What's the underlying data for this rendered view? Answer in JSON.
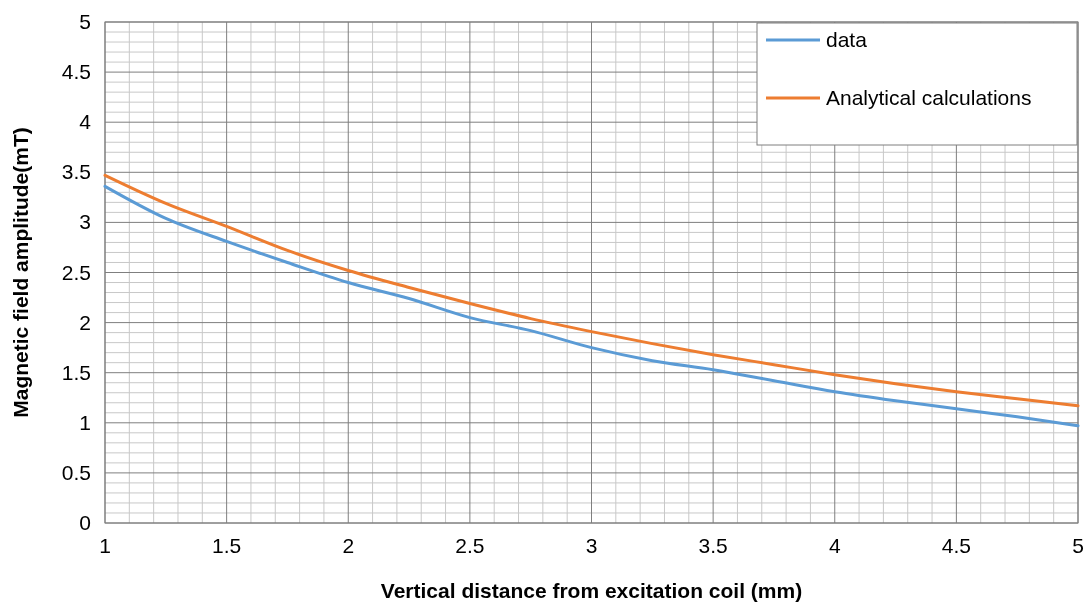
{
  "chart_data": {
    "type": "line",
    "xlabel": "Vertical distance from excitation coil (mm)",
    "ylabel": "Magnetic field amplitude(mT)",
    "x": [
      1,
      1.25,
      1.5,
      1.75,
      2,
      2.25,
      2.5,
      2.75,
      3,
      3.25,
      3.5,
      3.75,
      4,
      4.25,
      4.5,
      4.75,
      5
    ],
    "series": [
      {
        "name": "data",
        "color": "#5b9bd5",
        "values": [
          3.36,
          3.04,
          2.81,
          2.6,
          2.4,
          2.24,
          2.05,
          1.92,
          1.75,
          1.62,
          1.53,
          1.42,
          1.31,
          1.22,
          1.14,
          1.06,
          0.97
        ]
      },
      {
        "name": "Analytical calculations",
        "color": "#ed7d31",
        "values": [
          3.47,
          3.19,
          2.96,
          2.72,
          2.52,
          2.35,
          2.19,
          2.04,
          1.91,
          1.79,
          1.68,
          1.58,
          1.48,
          1.39,
          1.31,
          1.24,
          1.17
        ]
      }
    ],
    "xlim": [
      1,
      5
    ],
    "xticks": [
      1,
      1.5,
      2,
      2.5,
      3,
      3.5,
      4,
      4.5,
      5
    ],
    "ylim": [
      0,
      5
    ],
    "yticks": [
      0,
      0.5,
      1,
      1.5,
      2,
      2.5,
      3,
      3.5,
      4,
      4.5,
      5
    ],
    "grid": true,
    "legend": "top right",
    "marker": "none",
    "line_style": "solid"
  }
}
